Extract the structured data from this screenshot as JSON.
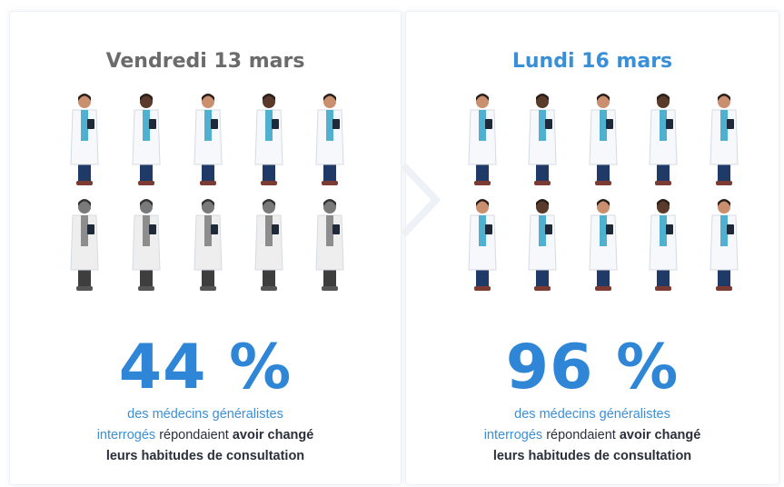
{
  "panels": [
    {
      "title": "Vendredi 13 mars",
      "percent": "44 %",
      "lead_1": "des médecins généralistes",
      "lead_2": "interrogés",
      "verb": "répondaient",
      "bold_1": "avoir changé",
      "bold_2": "leurs habitudes de consultation"
    },
    {
      "title": "Lundi 16 mars",
      "percent": "96 %",
      "lead_1": "des médecins généralistes",
      "lead_2": "interrogés",
      "verb": "répondaient",
      "bold_1": "avoir changé",
      "bold_2": "leurs habitudes de consultation"
    }
  ]
}
